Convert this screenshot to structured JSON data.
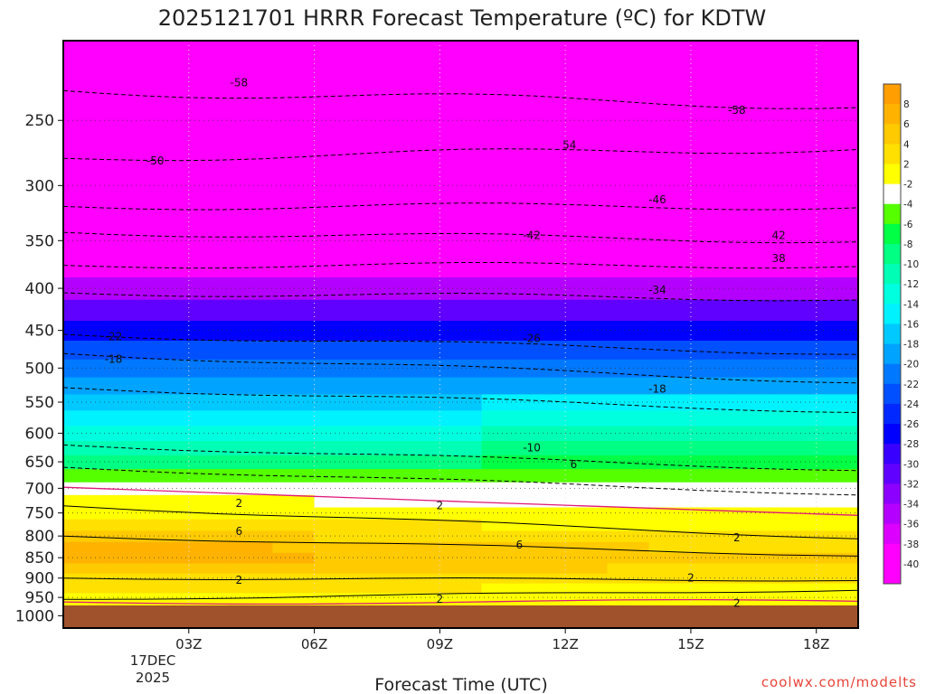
{
  "chart_data": {
    "type": "heatmap",
    "title": "2025121701 HRRR Forecast Temperature (ºC) for KDTW",
    "xlabel": "Forecast Time (UTC)",
    "ylabel": "",
    "credit": "coolwx.com/modelts",
    "x_ticks": [
      {
        "label": "03Z",
        "hour": 3
      },
      {
        "label": "06Z",
        "hour": 6
      },
      {
        "label": "09Z",
        "hour": 9
      },
      {
        "label": "12Z",
        "hour": 12
      },
      {
        "label": "15Z",
        "hour": 15
      },
      {
        "label": "18Z",
        "hour": 18
      }
    ],
    "x_subtitle_lines": [
      "17DEC",
      "2025"
    ],
    "x_range_hours": [
      0,
      19
    ],
    "y_axis_log_pressure": true,
    "y_range_hPa": [
      1035,
      200
    ],
    "y_ticks": [
      250,
      300,
      350,
      400,
      450,
      500,
      550,
      600,
      650,
      700,
      750,
      800,
      850,
      900,
      950,
      1000
    ],
    "y_tick_labels": [
      "250",
      "300",
      "350",
      "400",
      "450",
      "500",
      "550",
      "600",
      "650",
      "700",
      "750",
      "800",
      "850",
      "900",
      "950",
      "1000"
    ],
    "colorbar": {
      "labels": [
        "8",
        "6",
        "4",
        "2",
        "-2",
        "-4",
        "-6",
        "-8",
        "-10",
        "-12",
        "-14",
        "-16",
        "-18",
        "-20",
        "-22",
        "-24",
        "-26",
        "-28",
        "-30",
        "-32",
        "-34",
        "-36",
        "-38",
        "-40"
      ],
      "colors": [
        "#ff9e00",
        "#ffb300",
        "#ffca00",
        "#ffe000",
        "#ffff00",
        "#ffffff",
        "#55ff00",
        "#00ff45",
        "#00ff82",
        "#00ffb5",
        "#00ffdf",
        "#00f2ff",
        "#00c9ff",
        "#00a3ff",
        "#0078ff",
        "#0050ff",
        "#0028ff",
        "#0000ff",
        "#3800ff",
        "#6000ff",
        "#8c00ff",
        "#b400ff",
        "#dc00ff",
        "#ff00ff",
        "#ff00ff"
      ]
    },
    "temperature_profile": {
      "pressure_hPa": [
        1000,
        975,
        950,
        925,
        900,
        875,
        850,
        825,
        800,
        775,
        750,
        725,
        700,
        675,
        650,
        625,
        600,
        575,
        550,
        525,
        500,
        475,
        450,
        425,
        400,
        375,
        350,
        325,
        300,
        275,
        250,
        225
      ],
      "hour_00_temp_C": [
        1,
        1,
        3,
        4,
        4,
        7,
        8,
        8,
        6,
        4,
        3,
        2,
        1,
        -5,
        -8,
        -10,
        -12,
        -14,
        -16,
        -18,
        -20,
        -22,
        -26,
        -29,
        -33,
        -38,
        -43,
        -47,
        -51,
        -54,
        -57,
        -59
      ],
      "hour_19_temp_C": [
        2,
        3,
        2,
        2,
        3,
        4,
        5,
        4,
        3,
        2,
        1,
        -1,
        -2,
        -4,
        -6,
        -8,
        -10,
        -12,
        -14,
        -17,
        -20,
        -23,
        -26,
        -30,
        -34,
        -38,
        -42,
        -45,
        -49,
        -53,
        -56,
        -58
      ]
    },
    "contour_labels": [
      {
        "text": "-58",
        "hour": 4.2,
        "hPa": 225
      },
      {
        "text": "-58",
        "hour": 16.1,
        "hPa": 243
      },
      {
        "text": "-50",
        "hour": 2.2,
        "hPa": 280
      },
      {
        "text": "54",
        "hour": 12.1,
        "hPa": 268
      },
      {
        "text": "-46",
        "hour": 14.2,
        "hPa": 312
      },
      {
        "text": "-42",
        "hour": 11.2,
        "hPa": 345
      },
      {
        "text": "42",
        "hour": 17.1,
        "hPa": 345
      },
      {
        "text": "38",
        "hour": 17.1,
        "hPa": 368
      },
      {
        "text": "-34",
        "hour": 14.2,
        "hPa": 402
      },
      {
        "text": "-26",
        "hour": 11.2,
        "hPa": 460
      },
      {
        "text": "-22",
        "hour": 1.2,
        "hPa": 458
      },
      {
        "text": "-18",
        "hour": 1.2,
        "hPa": 488
      },
      {
        "text": "-18",
        "hour": 14.2,
        "hPa": 530
      },
      {
        "text": "-10",
        "hour": 11.2,
        "hPa": 625
      },
      {
        "text": "6",
        "hour": 12.2,
        "hPa": 655
      },
      {
        "text": "2",
        "hour": 4.2,
        "hPa": 730
      },
      {
        "text": "2",
        "hour": 9.0,
        "hPa": 735
      },
      {
        "text": "6",
        "hour": 4.2,
        "hPa": 790
      },
      {
        "text": "2",
        "hour": 16.1,
        "hPa": 804
      },
      {
        "text": "6",
        "hour": 10.9,
        "hPa": 820
      },
      {
        "text": "2",
        "hour": 15.0,
        "hPa": 900
      },
      {
        "text": "2",
        "hour": 4.2,
        "hPa": 905
      },
      {
        "text": "2",
        "hour": 9.0,
        "hPa": 955
      },
      {
        "text": "2",
        "hour": 16.1,
        "hPa": 965
      }
    ]
  }
}
